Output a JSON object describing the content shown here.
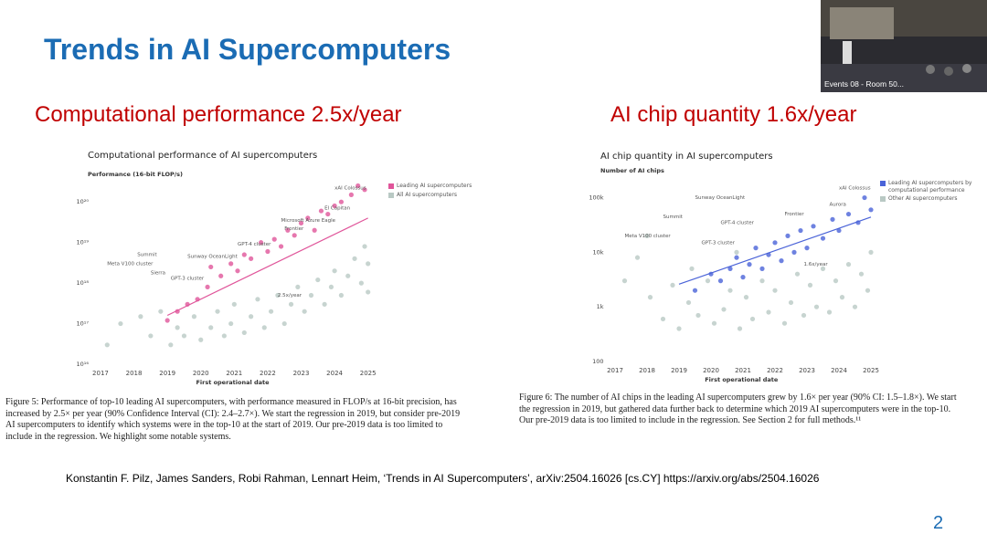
{
  "slide_title": "Trends in AI Supercomputers",
  "headings": [
    "Computational performance 2.5x/year",
    "AI chip quantity 1.6x/year"
  ],
  "video_label": "Events 08 - Room 50...",
  "captions": [
    "Figure 5: Performance of top-10 leading AI supercomputers, with performance measured in FLOP/s at 16-bit precision, has increased by 2.5× per year (90% Confidence Interval (CI): 2.4–2.7×). We start the regression in 2019, but consider pre-2019 AI supercomputers to identify which systems were in the top-10 at the start of 2019. Our pre-2019 data is too limited to include in the regression. We highlight some notable systems.",
    "Figure 6: The number of AI chips in the leading AI supercomputers grew by 1.6× per year (90% CI: 1.5–1.8×). We start the regression in 2019, but gathered data further back to determine which 2019 AI supercomputers were in the top-10. Our pre-2019 data is too limited to include in the regression. See Section 2 for full methods.¹¹"
  ],
  "citation": "Konstantin F. Pilz, James Sanders, Robi Rahman, Lennart Heim, ‘Trends in AI Supercomputers’, arXiv:2504.16026 [cs.CY] https://arxiv.org/abs/2504.16026",
  "page_number": "2",
  "chart_data": [
    {
      "type": "scatter",
      "title": "Computational performance of AI supercomputers",
      "y_label": "Performance (16-bit FLOP/s)",
      "x_label": "First operational date",
      "log_y": true,
      "grid": false,
      "legend": "upper right",
      "xlim": [
        2016.7,
        2025.2
      ],
      "xticks": [
        2017,
        2018,
        2019,
        2020,
        2021,
        2022,
        2023,
        2024,
        2025
      ],
      "ylim": [
        1e+16,
        3e+20
      ],
      "yticks": [
        {
          "value": 1e+16,
          "label": "10¹⁶"
        },
        {
          "value": 1e+17,
          "label": "10¹⁷"
        },
        {
          "value": 1e+18,
          "label": "10¹⁸"
        },
        {
          "value": 1e+19,
          "label": "10¹⁹"
        },
        {
          "value": 1e+20,
          "label": "10²⁰"
        }
      ],
      "series": [
        {
          "name": "All AI supercomputers",
          "color": "#b9c9c4",
          "x": [
            2017.2,
            2017.6,
            2018.2,
            2018.5,
            2018.8,
            2019.1,
            2019.3,
            2019.5,
            2019.8,
            2020.0,
            2020.3,
            2020.5,
            2020.7,
            2020.9,
            2021.0,
            2021.3,
            2021.5,
            2021.7,
            2021.9,
            2022.1,
            2022.3,
            2022.5,
            2022.7,
            2022.9,
            2023.1,
            2023.3,
            2023.5,
            2023.7,
            2023.9,
            2024.0,
            2024.2,
            2024.4,
            2024.6,
            2024.8,
            2025.0,
            2025.0,
            2024.9
          ],
          "values": [
            3e+16,
            1e+17,
            1.5e+17,
            5e+16,
            2e+17,
            3e+16,
            8e+16,
            5e+16,
            1.5e+17,
            4e+16,
            8e+16,
            2e+17,
            5e+16,
            1e+17,
            3e+17,
            6e+16,
            1.5e+17,
            4e+17,
            8e+16,
            2e+17,
            5e+17,
            1e+17,
            3e+17,
            8e+17,
            2e+17,
            5e+17,
            1.2e+18,
            3e+17,
            8e+17,
            2e+18,
            5e+17,
            1.5e+18,
            4e+18,
            1e+18,
            3e+18,
            6e+17,
            8e+18
          ]
        },
        {
          "name": "Leading AI supercomputers",
          "color": "#e0559a",
          "x": [
            2019.0,
            2019.3,
            2019.6,
            2019.9,
            2020.2,
            2020.3,
            2020.6,
            2020.9,
            2021.1,
            2021.3,
            2021.5,
            2021.8,
            2022.0,
            2022.2,
            2022.4,
            2022.6,
            2022.8,
            2023.0,
            2023.2,
            2023.4,
            2023.6,
            2023.8,
            2024.0,
            2024.2,
            2024.5,
            2024.7,
            2024.9
          ],
          "values": [
            1.2e+17,
            2e+17,
            3e+17,
            4e+17,
            8e+17,
            2.5e+18,
            1.5e+18,
            3e+18,
            2e+18,
            5e+18,
            4e+18,
            1e+19,
            6e+18,
            1.2e+19,
            8e+18,
            2e+19,
            1.5e+19,
            3e+19,
            4e+19,
            2e+19,
            6e+19,
            5e+19,
            8e+19,
            1e+20,
            1.5e+20,
            2.5e+20,
            2e+20
          ]
        }
      ],
      "trend": {
        "color": "#e0559a",
        "x": [
          2019,
          2025
        ],
        "values": [
          1.6e+17,
          4e+19
        ]
      },
      "annotations": [
        {
          "text": "xAI Colossus",
          "x": 2024.0,
          "y": 2.2e+20
        },
        {
          "text": "El Capitan",
          "x": 2023.7,
          "y": 7e+19
        },
        {
          "text": "Microsoft Azure Eagle",
          "x": 2022.4,
          "y": 3.5e+19
        },
        {
          "text": "Frontier",
          "x": 2022.5,
          "y": 2.2e+19
        },
        {
          "text": "GPT-4 cluster",
          "x": 2021.1,
          "y": 9e+18
        },
        {
          "text": "Sunway OceanLight",
          "x": 2019.6,
          "y": 4.5e+18
        },
        {
          "text": "GPT-3 cluster",
          "x": 2019.1,
          "y": 1.3e+18
        },
        {
          "text": "Summit",
          "x": 2018.1,
          "y": 5e+18
        },
        {
          "text": "Sierra",
          "x": 2018.5,
          "y": 1.8e+18
        },
        {
          "text": "Meta V100 cluster",
          "x": 2017.2,
          "y": 3e+18
        },
        {
          "text": "2.5x/year",
          "x": 2022.3,
          "y": 5e+17
        }
      ]
    },
    {
      "type": "scatter",
      "title": "AI chip quantity in AI supercomputers",
      "y_label": "Number of AI chips",
      "x_label": "First operational date",
      "log_y": true,
      "grid": false,
      "legend": "upper right",
      "xlim": [
        2016.7,
        2025.2
      ],
      "xticks": [
        2017,
        2018,
        2019,
        2020,
        2021,
        2022,
        2023,
        2024,
        2025
      ],
      "ylim": [
        100,
        300000
      ],
      "yticks": [
        100,
        {
          "value": 1000,
          "label": "1k"
        },
        {
          "value": 10000,
          "label": "10k"
        },
        {
          "value": 100000,
          "label": "100k"
        }
      ],
      "series": [
        {
          "name": "Other AI supercomputers",
          "color": "#b9c9c4",
          "x": [
            2017.3,
            2017.7,
            2018.1,
            2018.5,
            2018.8,
            2019.0,
            2019.3,
            2019.6,
            2019.9,
            2020.1,
            2020.4,
            2020.6,
            2020.9,
            2021.1,
            2021.3,
            2021.6,
            2021.8,
            2022.0,
            2022.3,
            2022.5,
            2022.7,
            2022.9,
            2023.1,
            2023.3,
            2023.5,
            2023.7,
            2023.9,
            2024.1,
            2024.3,
            2024.5,
            2024.7,
            2024.9,
            2025.0,
            2018.0,
            2019.4,
            2020.8
          ],
          "values": [
            3000,
            8000,
            1500,
            600,
            2500,
            400,
            1200,
            700,
            3000,
            500,
            900,
            2000,
            400,
            1500,
            600,
            3000,
            800,
            2000,
            500,
            1200,
            4000,
            700,
            2500,
            1000,
            5000,
            800,
            3000,
            1500,
            6000,
            1000,
            4000,
            2000,
            10000,
            20000,
            5000,
            10000
          ]
        },
        {
          "name": "Leading AI supercomputers by computational performance",
          "color": "#4a63d8",
          "x": [
            2019.5,
            2020.0,
            2020.3,
            2020.6,
            2020.8,
            2021.0,
            2021.2,
            2021.4,
            2021.6,
            2021.8,
            2022.0,
            2022.2,
            2022.4,
            2022.6,
            2022.8,
            2023.0,
            2023.2,
            2023.5,
            2023.8,
            2024.0,
            2024.3,
            2024.6,
            2024.8,
            2025.0
          ],
          "values": [
            2000,
            4000,
            3000,
            5000,
            8000,
            3500,
            6000,
            12000,
            5000,
            9000,
            15000,
            7000,
            20000,
            10000,
            25000,
            12000,
            30000,
            18000,
            40000,
            25000,
            50000,
            35000,
            100000,
            60000
          ]
        }
      ],
      "trend": {
        "color": "#4a63d8",
        "x": [
          2019,
          2025
        ],
        "values": [
          2600,
          44000
        ]
      },
      "annotations": [
        {
          "text": "xAI Colossus",
          "x": 2024.0,
          "y": 150000
        },
        {
          "text": "Sunway OceanLight",
          "x": 2019.5,
          "y": 100000
        },
        {
          "text": "Summit",
          "x": 2018.5,
          "y": 45000
        },
        {
          "text": "Frontier",
          "x": 2022.3,
          "y": 50000
        },
        {
          "text": "Aurora",
          "x": 2023.7,
          "y": 75000
        },
        {
          "text": "GPT-4 cluster",
          "x": 2020.3,
          "y": 35000
        },
        {
          "text": "Meta V100 cluster",
          "x": 2017.3,
          "y": 20000
        },
        {
          "text": "GPT-3 cluster",
          "x": 2019.7,
          "y": 15000
        },
        {
          "text": "1.6x/year",
          "x": 2022.9,
          "y": 6000
        }
      ]
    }
  ]
}
